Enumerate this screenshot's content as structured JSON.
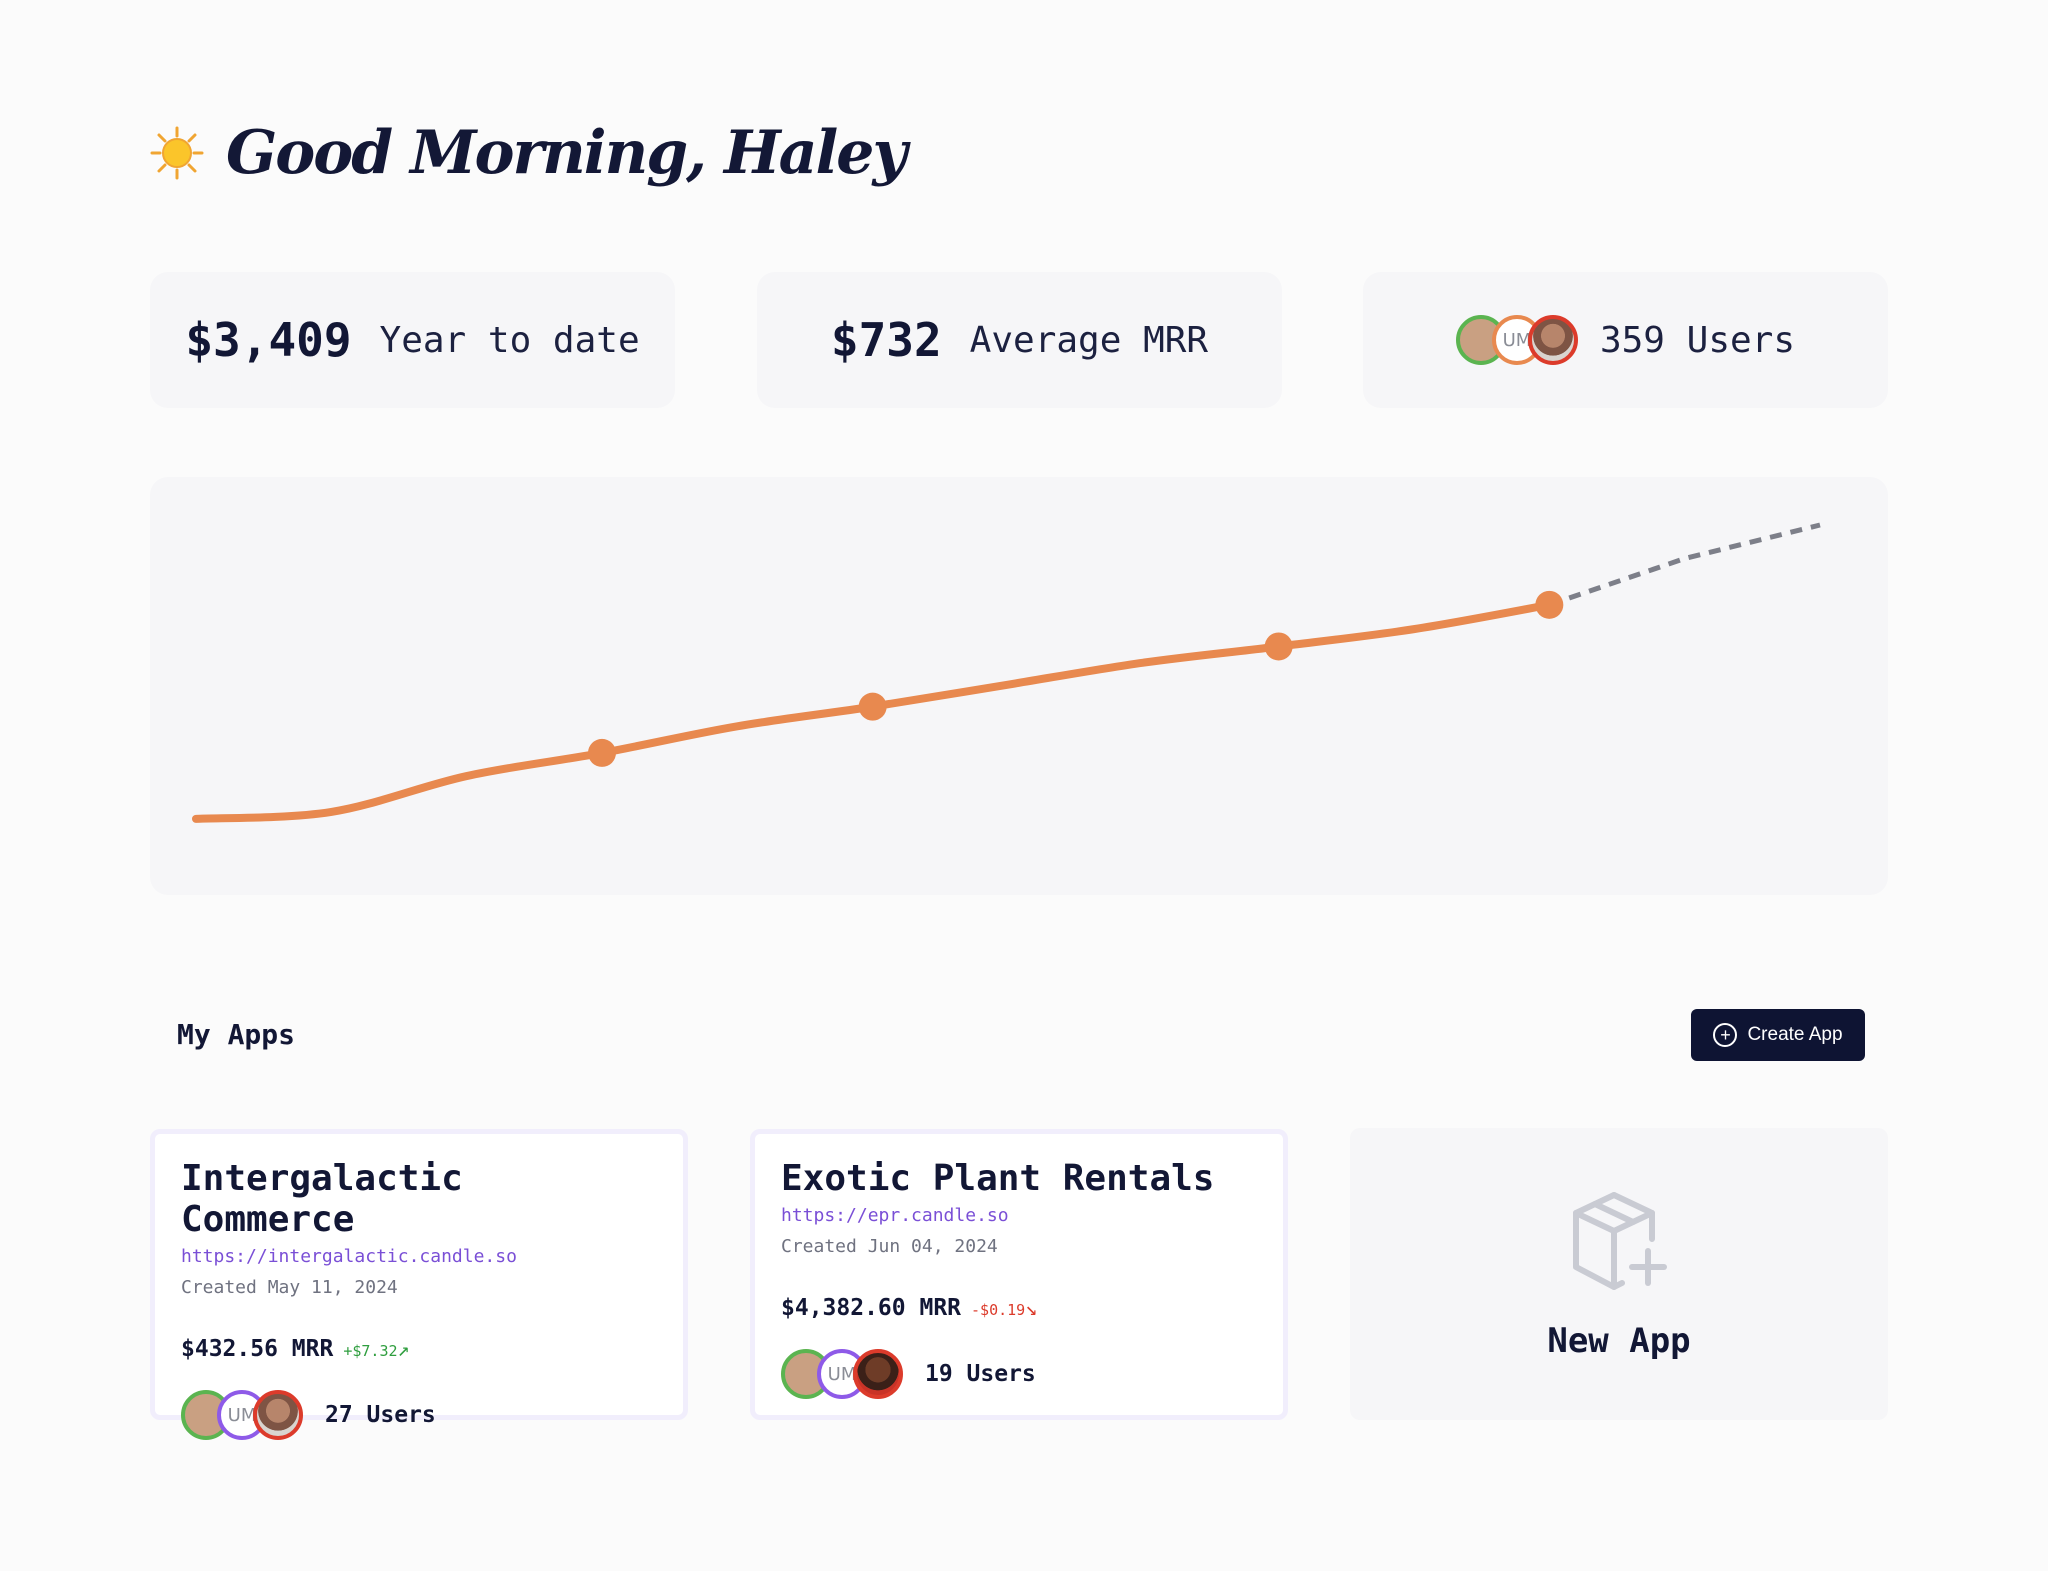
{
  "greeting": {
    "text": "Good Morning, Haley",
    "icon": "sun-icon"
  },
  "stats": [
    {
      "value": "$3,409",
      "label": "Year to date"
    },
    {
      "value": "$732",
      "label": "Average MRR"
    },
    {
      "value": "359",
      "label": "Users"
    }
  ],
  "stats_users_text": "359 Users",
  "avatar_initials": "UM",
  "chart_data": {
    "type": "line",
    "title": "",
    "xlabel": "",
    "ylabel": "",
    "grid": false,
    "series": [
      {
        "style": "solid",
        "color": "#e8894f",
        "values": [
          20,
          26,
          57,
          77,
          100,
          117,
          136,
          155,
          169,
          184,
          205
        ]
      },
      {
        "style": "dashed",
        "color": "#7d7f89",
        "values": [
          205,
          245,
          274
        ]
      }
    ],
    "markers": [
      3,
      5,
      8,
      10
    ]
  },
  "apps": {
    "title": "My Apps",
    "create_label": "Create App",
    "items": [
      {
        "name": "Intergalactic Commerce",
        "url": "https://intergalactic.candle.so",
        "created": "Created May 11, 2024",
        "mrr": "$432.56 MRR",
        "delta": "+$7.32",
        "delta_arrow": "↗",
        "users": "27 Users"
      },
      {
        "name": "Exotic Plant Rentals",
        "url": "https://epr.candle.so",
        "created": "Created Jun 04, 2024",
        "mrr": "$4,382.60 MRR",
        "delta": "-$0.19",
        "delta_arrow": "↘",
        "users": "19 Users"
      }
    ],
    "new_app_label": "New App"
  },
  "colors": {
    "accent": "#e8894f",
    "dark": "#0e1433",
    "link": "#7a4fd6",
    "up": "#2f9e3f",
    "down": "#dc3b2b"
  }
}
